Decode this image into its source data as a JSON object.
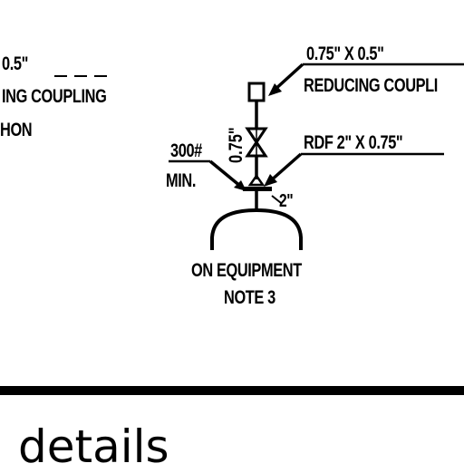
{
  "left_fragment": {
    "line1": "0.5\"",
    "line2": "ING COUPLING",
    "line3": "HON"
  },
  "reducing_coupling": {
    "size": "0.75\" X 0.5\"",
    "label": "REDUCING COUPLI"
  },
  "rdf": {
    "label": "RDF 2\" X 0.75\""
  },
  "flange_rating": {
    "rating": "300#",
    "min": "MIN."
  },
  "vertical_pipe_size": "0.75\"",
  "nozzle_size": "2\"",
  "equipment": {
    "line1": "ON EQUIPMENT",
    "line2": "NOTE 3"
  },
  "footer_word": "details",
  "colors": {
    "ink": "#000000",
    "paper": "#ffffff"
  }
}
